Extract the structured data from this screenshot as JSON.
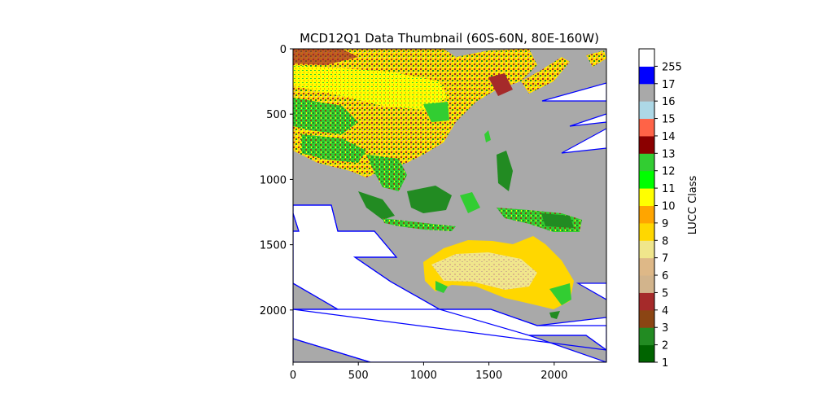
{
  "chart_data": {
    "type": "heatmap",
    "title": "MCD12Q1 Data Thumbnail (60S-60N, 80E-160W)",
    "xlabel": "",
    "ylabel": "",
    "xlim": [
      0,
      2400
    ],
    "ylim": [
      2400,
      0
    ],
    "x_ticks": [
      0,
      500,
      1000,
      1500,
      2000
    ],
    "y_ticks": [
      0,
      500,
      1000,
      1500,
      2000
    ],
    "colorbar": {
      "label": "LUCC Class",
      "classes": [
        {
          "value": 1,
          "label": "1",
          "color": "#006400"
        },
        {
          "value": 2,
          "label": "2",
          "color": "#228B22"
        },
        {
          "value": 3,
          "label": "3",
          "color": "#8B4513"
        },
        {
          "value": 4,
          "label": "4",
          "color": "#A52A2A"
        },
        {
          "value": 5,
          "label": "5",
          "color": "#D2B48C"
        },
        {
          "value": 6,
          "label": "6",
          "color": "#DEB887"
        },
        {
          "value": 7,
          "label": "7",
          "color": "#F0E68C"
        },
        {
          "value": 8,
          "label": "8",
          "color": "#FFD700"
        },
        {
          "value": 9,
          "label": "9",
          "color": "#FFA500"
        },
        {
          "value": 10,
          "label": "10",
          "color": "#FFFF00"
        },
        {
          "value": 11,
          "label": "11",
          "color": "#00FF00"
        },
        {
          "value": 12,
          "label": "12",
          "color": "#32CD32"
        },
        {
          "value": 13,
          "label": "13",
          "color": "#8B0000"
        },
        {
          "value": 14,
          "label": "14",
          "color": "#FF6347"
        },
        {
          "value": 15,
          "label": "15",
          "color": "#ADD8E6"
        },
        {
          "value": 16,
          "label": "16",
          "color": "#A9A9A9"
        },
        {
          "value": 17,
          "label": "17",
          "color": "#0000FF"
        },
        {
          "value": 255,
          "label": "255",
          "color": "#FFFFFF"
        }
      ]
    },
    "nodata_outline_color": "#0000FF",
    "water_color": "#A9A9A9"
  }
}
